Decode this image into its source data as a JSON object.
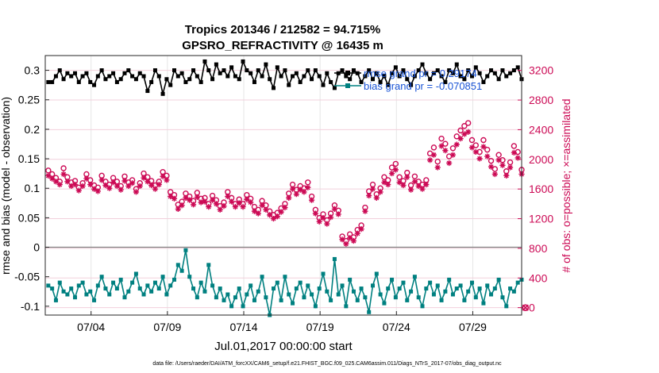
{
  "chart_data": {
    "type": "line",
    "title_line1": "Tropics 201346 / 212582 = 94.715%",
    "title_line2": "GPSRO_REFRACTIVITY @ 16435 m",
    "ylabel_left": "rmse and bias (model - observation)",
    "ylabel_right": "# of obs: o=possible; ×=assimilated",
    "xlabel": "Jul.01,2017 00:00:00 start",
    "footnote": "data file: /Users/raeder/DAI/ATM_forcXX/CAM6_setup/f.e21.FHIST_BGC.f09_025.CAM6assim.011/Diags_NTrS_2017-07/obs_diag_output.nc",
    "x_range_days": [
      1.0,
      32.2
    ],
    "ylim_left": [
      -0.115,
      0.325
    ],
    "ylim_right": [
      -100,
      3400
    ],
    "x_ticks": [
      {
        "day": 4,
        "label": "07/04"
      },
      {
        "day": 9,
        "label": "07/09"
      },
      {
        "day": 14,
        "label": "07/14"
      },
      {
        "day": 19,
        "label": "07/19"
      },
      {
        "day": 24,
        "label": "07/24"
      },
      {
        "day": 29,
        "label": "07/29"
      }
    ],
    "y_ticks_left": [
      {
        "v": -0.1,
        "label": "-0.1"
      },
      {
        "v": -0.05,
        "label": "-0.05"
      },
      {
        "v": 0,
        "label": "0"
      },
      {
        "v": 0.05,
        "label": "0.05"
      },
      {
        "v": 0.1,
        "label": "0.1"
      },
      {
        "v": 0.15,
        "label": "0.15"
      },
      {
        "v": 0.2,
        "label": "0.2"
      },
      {
        "v": 0.25,
        "label": "0.25"
      },
      {
        "v": 0.3,
        "label": "0.3"
      }
    ],
    "y_ticks_right": [
      {
        "v": 0,
        "label": "0"
      },
      {
        "v": 400,
        "label": "400"
      },
      {
        "v": 800,
        "label": "800"
      },
      {
        "v": 1200,
        "label": "1200"
      },
      {
        "v": 1600,
        "label": "1600"
      },
      {
        "v": 2000,
        "label": "2000"
      },
      {
        "v": 2400,
        "label": "2400"
      },
      {
        "v": 2800,
        "label": "2800"
      },
      {
        "v": 3200,
        "label": "3200"
      }
    ],
    "legend": [
      {
        "name": "rmse grand pr = 0.29174",
        "color": "#000000"
      },
      {
        "name": "bias grand pr = -0.070851",
        "color": "#008080"
      }
    ],
    "colors": {
      "rmse": "#000000",
      "bias": "#008080",
      "obs": "#cc0a55",
      "legend_text": "#1a54d6"
    },
    "series_start_day": 1.2,
    "series_step_day": 0.25,
    "rmse": [
      0.28,
      0.28,
      0.29,
      0.3,
      0.285,
      0.295,
      0.29,
      0.295,
      0.28,
      0.29,
      0.295,
      0.28,
      0.275,
      0.29,
      0.3,
      0.285,
      0.29,
      0.295,
      0.28,
      0.285,
      0.295,
      0.3,
      0.29,
      0.285,
      0.295,
      0.29,
      0.265,
      0.28,
      0.3,
      0.29,
      0.26,
      0.285,
      0.275,
      0.3,
      0.29,
      0.295,
      0.28,
      0.285,
      0.3,
      0.29,
      0.28,
      0.315,
      0.3,
      0.285,
      0.31,
      0.295,
      0.3,
      0.29,
      0.305,
      0.29,
      0.285,
      0.315,
      0.3,
      0.295,
      0.28,
      0.3,
      0.29,
      0.31,
      0.285,
      0.27,
      0.305,
      0.29,
      0.3,
      0.275,
      0.29,
      0.295,
      0.28,
      0.29,
      0.3,
      0.285,
      0.3,
      0.29,
      0.275,
      0.295,
      0.28,
      0.27,
      0.295,
      0.3,
      0.29,
      0.285,
      0.3,
      0.295,
      0.28,
      0.29,
      0.3,
      0.285,
      0.295,
      0.28,
      0.29,
      0.275,
      0.295,
      0.305,
      0.29,
      0.3,
      0.285,
      0.275,
      0.29,
      0.3,
      0.31,
      0.295,
      0.285,
      0.295,
      0.3,
      0.29,
      0.28,
      0.3,
      0.295,
      0.31,
      0.29,
      0.285,
      0.3,
      0.29,
      0.305,
      0.295,
      0.28,
      0.29,
      0.3,
      0.295,
      0.285,
      0.3,
      0.29,
      0.295,
      0.3,
      0.305,
      0.285
    ],
    "bias": [
      -0.065,
      -0.07,
      -0.09,
      -0.06,
      -0.075,
      -0.08,
      -0.07,
      -0.085,
      -0.065,
      -0.06,
      -0.08,
      -0.075,
      -0.09,
      -0.065,
      -0.05,
      -0.07,
      -0.08,
      -0.06,
      -0.07,
      -0.055,
      -0.085,
      -0.075,
      -0.06,
      -0.045,
      -0.07,
      -0.08,
      -0.065,
      -0.075,
      -0.06,
      -0.07,
      -0.05,
      -0.08,
      -0.065,
      -0.055,
      -0.03,
      -0.04,
      -0.005,
      -0.05,
      -0.07,
      -0.085,
      -0.06,
      -0.075,
      -0.03,
      -0.065,
      -0.085,
      -0.07,
      -0.09,
      -0.08,
      -0.1,
      -0.085,
      -0.07,
      -0.1,
      -0.08,
      -0.065,
      -0.09,
      -0.075,
      -0.05,
      -0.085,
      -0.115,
      -0.07,
      -0.06,
      -0.09,
      -0.05,
      -0.08,
      -0.095,
      -0.07,
      -0.06,
      -0.085,
      -0.065,
      -0.08,
      -0.1,
      -0.07,
      -0.045,
      -0.075,
      -0.09,
      -0.02,
      -0.08,
      -0.065,
      -0.1,
      -0.055,
      -0.075,
      -0.09,
      -0.07,
      -0.085,
      -0.11,
      -0.065,
      -0.045,
      -0.08,
      -0.095,
      -0.07,
      -0.055,
      -0.085,
      -0.07,
      -0.06,
      -0.09,
      -0.075,
      -0.05,
      -0.085,
      -0.1,
      -0.07,
      -0.06,
      -0.08,
      -0.065,
      -0.09,
      -0.075,
      -0.055,
      -0.08,
      -0.07,
      -0.065,
      -0.09,
      -0.075,
      -0.06,
      -0.085,
      -0.07,
      -0.095,
      -0.065,
      -0.08,
      -0.07,
      -0.055,
      -0.085,
      -0.1,
      -0.07,
      -0.075,
      -0.06,
      -0.055
    ],
    "obs_possible": [
      1850,
      1800,
      1750,
      1700,
      1880,
      1760,
      1690,
      1710,
      1620,
      1680,
      1800,
      1720,
      1650,
      1620,
      1780,
      1700,
      1660,
      1750,
      1700,
      1640,
      1770,
      1690,
      1720,
      1600,
      1680,
      1810,
      1760,
      1710,
      1650,
      1700,
      1830,
      1780,
      1560,
      1520,
      1390,
      1430,
      1540,
      1500,
      1440,
      1550,
      1470,
      1480,
      1400,
      1510,
      1450,
      1370,
      1420,
      1560,
      1480,
      1400,
      1460,
      1400,
      1520,
      1470,
      1360,
      1320,
      1440,
      1380,
      1300,
      1250,
      1280,
      1340,
      1400,
      1540,
      1660,
      1590,
      1640,
      1610,
      1690,
      1500,
      1320,
      1210,
      1260,
      1180,
      1270,
      1380,
      1310,
      960,
      900,
      990,
      950,
      1050,
      1110,
      1350,
      1570,
      1660,
      1530,
      1610,
      1760,
      1720,
      1890,
      1940,
      1760,
      1710,
      1820,
      1650,
      1770,
      1700,
      1660,
      1720,
      2080,
      2160,
      1970,
      2280,
      2210,
      2040,
      2150,
      2310,
      2390,
      2450,
      2490,
      2260,
      2190,
      2100,
      2260,
      2130,
      1980,
      1870,
      2060,
      1990,
      1840,
      1960,
      2180,
      2100,
      1860
    ],
    "obs_assimilated": [
      1780,
      1740,
      1700,
      1660,
      1800,
      1700,
      1640,
      1660,
      1580,
      1640,
      1740,
      1660,
      1600,
      1570,
      1720,
      1650,
      1610,
      1690,
      1640,
      1590,
      1710,
      1640,
      1680,
      1560,
      1640,
      1750,
      1700,
      1650,
      1600,
      1660,
      1770,
      1720,
      1500,
      1470,
      1330,
      1380,
      1480,
      1450,
      1390,
      1490,
      1420,
      1430,
      1360,
      1450,
      1400,
      1320,
      1370,
      1500,
      1430,
      1360,
      1410,
      1360,
      1460,
      1420,
      1300,
      1270,
      1380,
      1320,
      1250,
      1200,
      1230,
      1290,
      1350,
      1480,
      1600,
      1530,
      1590,
      1560,
      1620,
      1450,
      1270,
      1160,
      1210,
      1130,
      1220,
      1330,
      1260,
      920,
      860,
      940,
      900,
      1000,
      1060,
      1300,
      1510,
      1600,
      1480,
      1560,
      1690,
      1660,
      1810,
      1860,
      1690,
      1650,
      1760,
      1590,
      1700,
      1640,
      1600,
      1660,
      1990,
      2060,
      1890,
      2180,
      2120,
      1950,
      2060,
      2200,
      2280,
      2340,
      2370,
      2160,
      2100,
      2010,
      2170,
      2040,
      1900,
      1800,
      1990,
      1920,
      1780,
      1890,
      2090,
      2020,
      1800
    ]
  }
}
